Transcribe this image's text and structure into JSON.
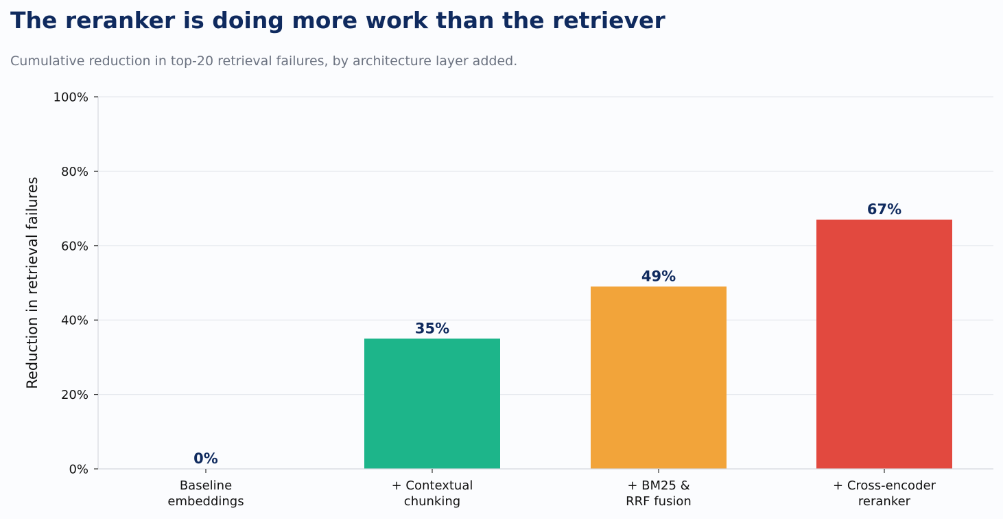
{
  "chart_data": {
    "type": "bar",
    "title": "The reranker is doing more work than the retriever",
    "subtitle": "Cumulative reduction in top-20 retrieval failures, by architecture layer added.",
    "xlabel": "",
    "ylabel": "Reduction in retrieval failures",
    "categories": [
      [
        "Baseline",
        "embeddings"
      ],
      [
        "+ Contextual",
        "chunking"
      ],
      [
        "+ BM25 &",
        "RRF fusion"
      ],
      [
        "+ Cross-encoder",
        "reranker"
      ]
    ],
    "values": [
      0,
      35,
      49,
      67
    ],
    "data_labels": [
      "0%",
      "35%",
      "49%",
      "67%"
    ],
    "colors": [
      "#1db58a",
      "#1db58a",
      "#f2a43a",
      "#e2493f"
    ],
    "ylim": [
      0,
      100
    ],
    "yticks": [
      0,
      20,
      40,
      60,
      80,
      100
    ],
    "ytick_labels": [
      "0%",
      "20%",
      "40%",
      "60%",
      "80%",
      "100%"
    ],
    "grid": true,
    "legend": "none"
  }
}
